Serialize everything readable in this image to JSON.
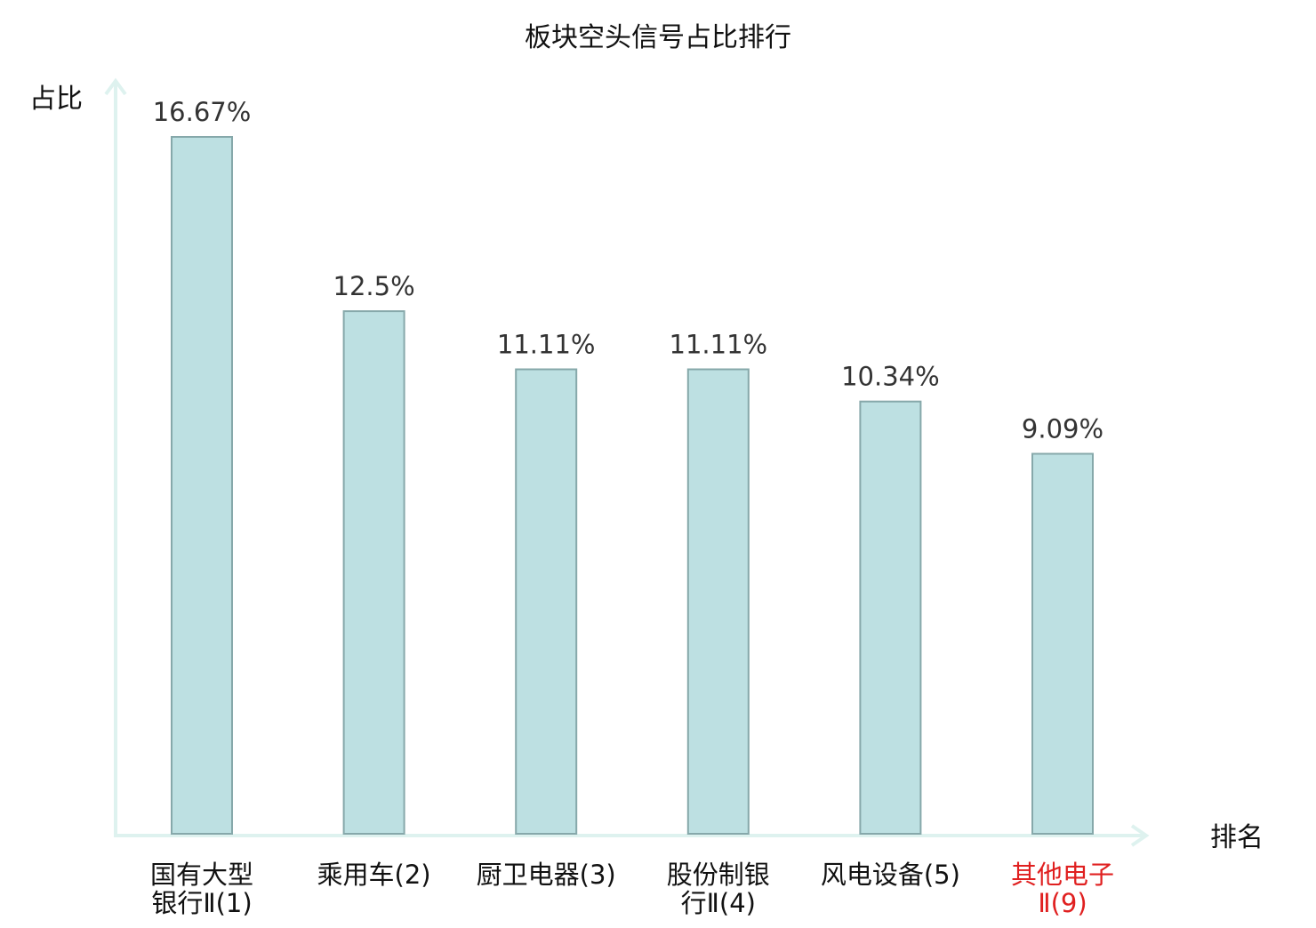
{
  "chart_data": {
    "type": "bar",
    "title": "板块空头信号占比排行",
    "ylabel": "占比",
    "xlabel": "排名",
    "categories": [
      [
        "国有大型",
        "银行Ⅱ(1)"
      ],
      [
        "乘用车(2)"
      ],
      [
        "厨卫电器(3)"
      ],
      [
        "股份制银",
        "行Ⅱ(4)"
      ],
      [
        "风电设备(5)"
      ],
      [
        "其他电子",
        "Ⅱ(9)"
      ]
    ],
    "values": [
      16.67,
      12.5,
      11.11,
      11.11,
      10.34,
      9.09
    ],
    "value_labels": [
      "16.67%",
      "12.5%",
      "11.11%",
      "11.11%",
      "10.34%",
      "9.09%"
    ],
    "highlight_index": 5,
    "ylim": [
      0,
      16.67
    ],
    "grid": false,
    "legend": "none",
    "colors": {
      "bar_fill": "#bde0e2",
      "bar_stroke": "#86a8aa",
      "axis": "#def2ef",
      "text": "#111111",
      "value_label": "#333333",
      "highlight": "#e02020"
    }
  }
}
